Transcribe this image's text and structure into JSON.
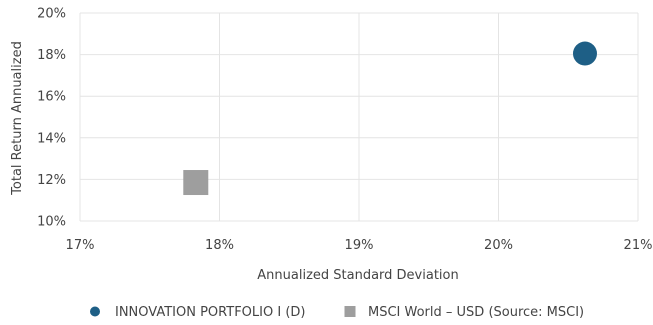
{
  "chart_data": {
    "type": "scatter",
    "xlabel": "Annualized Standard Deviation",
    "ylabel": "Total Return Annualized",
    "xlim": [
      17,
      21
    ],
    "ylim": [
      10,
      20
    ],
    "x_ticks": [
      17,
      18,
      19,
      20,
      21
    ],
    "y_ticks": [
      10,
      12,
      14,
      16,
      18,
      20
    ],
    "x_tick_labels": [
      "17%",
      "18%",
      "19%",
      "20%",
      "21%"
    ],
    "y_tick_labels": [
      "10%",
      "12%",
      "14%",
      "16%",
      "18%",
      "20%"
    ],
    "grid": true,
    "legend_position": "bottom",
    "series": [
      {
        "name": "INNOVATION PORTFOLIO I (D)",
        "marker": "circle",
        "color": "#1e5f86",
        "x": 20.62,
        "y": 18.05
      },
      {
        "name": "MSCI World – USD (Source: MSCI)",
        "marker": "square",
        "color": "#9e9e9e",
        "x": 17.83,
        "y": 11.85
      }
    ]
  }
}
